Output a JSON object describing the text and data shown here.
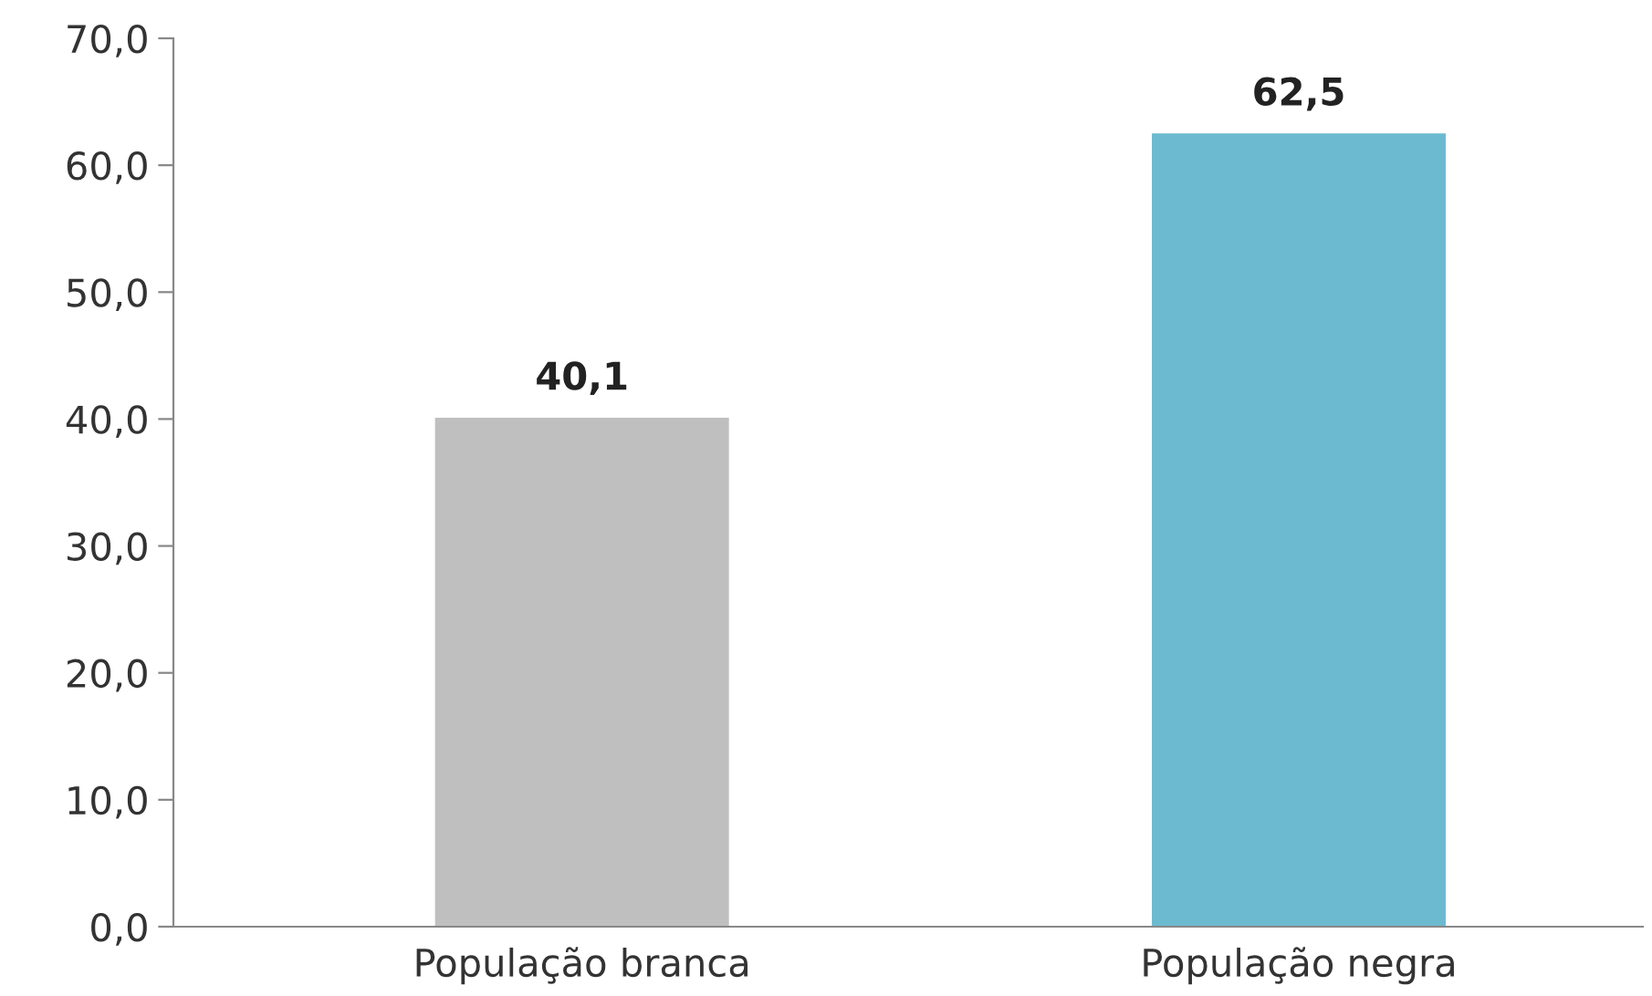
{
  "chart_data": {
    "type": "bar",
    "categories": [
      "População branca",
      "População negra"
    ],
    "values": [
      40.1,
      62.5
    ],
    "colors": [
      "#bfbfbf",
      "#6cbad0"
    ],
    "value_labels": [
      "40,1",
      "62,5"
    ],
    "ylim": [
      0,
      70
    ],
    "yticks": [
      {
        "value": 0,
        "label": "0,0"
      },
      {
        "value": 10,
        "label": "10,0"
      },
      {
        "value": 20,
        "label": "20,0"
      },
      {
        "value": 30,
        "label": "30,0"
      },
      {
        "value": 40,
        "label": "40,0"
      },
      {
        "value": 50,
        "label": "50,0"
      },
      {
        "value": 60,
        "label": "60,0"
      },
      {
        "value": 70,
        "label": "70,0"
      }
    ],
    "grid": false
  }
}
